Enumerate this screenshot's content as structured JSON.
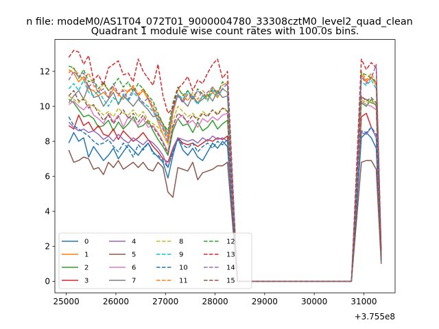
{
  "suptitle": "n file: modeM0/AS1T04_072T01_9000004780_33308cztM0_level2_quad_clean",
  "chart_data": {
    "type": "line",
    "title": "Quadrant 1 module wise count rates with 100.0s bins.",
    "xlabel": "",
    "ylabel": "",
    "offset_text": "+3.755e8",
    "xlim": [
      24770,
      31630
    ],
    "ylim": [
      -0.66,
      13.82
    ],
    "x_ticks": [
      25000,
      26000,
      27000,
      28000,
      29000,
      30000,
      31000
    ],
    "y_ticks": [
      0,
      2,
      4,
      6,
      8,
      10,
      12
    ],
    "grid": false,
    "legend": {
      "placement": "lower-left",
      "columns": 4
    },
    "x": [
      25050,
      25150,
      25250,
      25350,
      25450,
      25550,
      25650,
      25750,
      25850,
      25950,
      26050,
      26150,
      26250,
      26350,
      26450,
      26550,
      26650,
      26750,
      26850,
      26950,
      27050,
      27150,
      27250,
      27350,
      27450,
      27550,
      27650,
      27750,
      27850,
      27950,
      28050,
      28150,
      28250,
      28350,
      28450,
      28550,
      28650,
      28750,
      28850,
      28950,
      29050,
      29150,
      29250,
      29350,
      29450,
      29550,
      29650,
      29750,
      29850,
      29950,
      30050,
      30150,
      30250,
      30350,
      30450,
      30550,
      30650,
      30750,
      30850,
      30950,
      31050,
      31150,
      31250,
      31350
    ],
    "series": [
      {
        "name": "0",
        "color": "#1f77b4",
        "dash": "solid",
        "values": [
          7.9,
          8.5,
          8.0,
          8.2,
          7.1,
          7.7,
          7.3,
          6.9,
          7.2,
          7.6,
          7.0,
          7.4,
          7.8,
          7.5,
          7.2,
          7.6,
          7.9,
          7.4,
          7.1,
          6.8,
          5.9,
          7.2,
          8.2,
          7.5,
          7.2,
          7.6,
          7.1,
          6.9,
          7.4,
          7.9,
          7.6,
          8.0,
          7.7,
          4.0,
          0.0,
          0.0,
          0.0,
          0.0,
          0.0,
          0.0,
          0.0,
          0.0,
          0.0,
          0.0,
          0.0,
          0.0,
          0.0,
          0.0,
          0.0,
          0.0,
          0.0,
          0.0,
          0.0,
          0.0,
          0.0,
          0.0,
          0.0,
          0.0,
          4.0,
          8.2,
          8.5,
          8.2,
          7.6,
          1.3
        ]
      },
      {
        "name": "1",
        "color": "#ff7f0e",
        "dash": "solid",
        "values": [
          12.1,
          11.9,
          11.4,
          11.7,
          11.0,
          10.9,
          10.6,
          10.8,
          10.5,
          11.0,
          10.7,
          10.4,
          10.9,
          11.1,
          10.6,
          10.9,
          10.4,
          9.8,
          9.1,
          8.4,
          7.9,
          9.6,
          10.7,
          10.3,
          10.9,
          10.5,
          10.2,
          10.6,
          10.4,
          10.8,
          10.5,
          11.0,
          10.8,
          5.5,
          0.0,
          0.0,
          0.0,
          0.0,
          0.0,
          0.0,
          0.0,
          0.0,
          0.0,
          0.0,
          0.0,
          0.0,
          0.0,
          0.0,
          0.0,
          0.0,
          0.0,
          0.0,
          0.0,
          0.0,
          0.0,
          0.0,
          0.0,
          0.0,
          5.5,
          11.8,
          11.4,
          11.7,
          11.2,
          1.5
        ]
      },
      {
        "name": "2",
        "color": "#2ca02c",
        "dash": "solid",
        "values": [
          10.4,
          10.2,
          9.8,
          9.4,
          9.5,
          9.3,
          8.8,
          8.9,
          9.2,
          8.6,
          9.1,
          8.7,
          9.0,
          9.4,
          8.8,
          8.9,
          9.2,
          8.6,
          8.1,
          7.7,
          7.2,
          8.6,
          9.3,
          8.9,
          9.0,
          8.5,
          9.1,
          8.6,
          8.8,
          9.2,
          8.7,
          9.0,
          9.2,
          4.6,
          0.0,
          0.0,
          0.0,
          0.0,
          0.0,
          0.0,
          0.0,
          0.0,
          0.0,
          0.0,
          0.0,
          0.0,
          0.0,
          0.0,
          0.0,
          0.0,
          0.0,
          0.0,
          0.0,
          0.0,
          0.0,
          0.0,
          0.0,
          0.0,
          4.8,
          10.2,
          10.0,
          10.4,
          10.0,
          1.4
        ]
      },
      {
        "name": "3",
        "color": "#d62728",
        "dash": "solid",
        "values": [
          8.9,
          8.7,
          9.5,
          8.9,
          9.1,
          8.6,
          8.9,
          8.4,
          8.3,
          8.7,
          8.1,
          8.6,
          8.3,
          8.0,
          8.2,
          8.5,
          8.1,
          7.7,
          7.4,
          7.0,
          6.8,
          7.6,
          8.2,
          7.9,
          7.8,
          7.9,
          7.7,
          7.9,
          8.1,
          8.0,
          8.2,
          8.1,
          8.3,
          4.2,
          0.0,
          0.0,
          0.0,
          0.0,
          0.0,
          0.0,
          0.0,
          0.0,
          0.0,
          0.0,
          0.0,
          0.0,
          0.0,
          0.0,
          0.0,
          0.0,
          0.0,
          0.0,
          0.0,
          0.0,
          0.0,
          0.0,
          0.0,
          0.0,
          4.5,
          9.4,
          9.6,
          8.8,
          8.2,
          1.2
        ]
      },
      {
        "name": "4",
        "color": "#9467bd",
        "dash": "solid",
        "values": [
          9.1,
          8.8,
          8.6,
          8.7,
          8.5,
          8.6,
          8.4,
          8.1,
          8.3,
          8.0,
          8.4,
          8.1,
          7.9,
          8.2,
          8.0,
          7.8,
          8.1,
          7.9,
          7.6,
          7.2,
          6.5,
          7.5,
          8.2,
          8.1,
          8.0,
          8.1,
          7.9,
          8.2,
          8.0,
          8.3,
          8.1,
          8.2,
          8.0,
          4.1,
          0.0,
          0.0,
          0.0,
          0.0,
          0.0,
          0.0,
          0.0,
          0.0,
          0.0,
          0.0,
          0.0,
          0.0,
          0.0,
          0.0,
          0.0,
          0.0,
          0.0,
          0.0,
          0.0,
          0.0,
          0.0,
          0.0,
          0.0,
          0.0,
          4.4,
          8.5,
          8.4,
          8.8,
          8.2,
          1.2
        ]
      },
      {
        "name": "5",
        "color": "#8c564b",
        "dash": "solid",
        "values": [
          7.5,
          6.8,
          6.9,
          7.1,
          7.0,
          6.4,
          6.5,
          6.1,
          6.8,
          6.5,
          6.9,
          6.4,
          6.6,
          6.8,
          6.5,
          6.8,
          6.4,
          6.3,
          6.8,
          6.5,
          5.1,
          4.8,
          6.5,
          6.4,
          6.3,
          6.8,
          5.8,
          6.2,
          6.3,
          6.4,
          6.6,
          6.6,
          6.8,
          3.4,
          0.0,
          0.0,
          0.0,
          0.0,
          0.0,
          0.0,
          0.0,
          0.0,
          0.0,
          0.0,
          0.0,
          0.0,
          0.0,
          0.0,
          0.0,
          0.0,
          0.0,
          0.0,
          0.0,
          0.0,
          0.0,
          0.0,
          0.0,
          0.0,
          3.4,
          6.8,
          6.9,
          6.9,
          6.4,
          1.0
        ]
      },
      {
        "name": "6",
        "color": "#e377c2",
        "dash": "solid",
        "values": [
          10.1,
          10.3,
          10.0,
          9.8,
          10.1,
          9.5,
          9.3,
          9.0,
          9.6,
          9.1,
          9.5,
          8.8,
          9.4,
          9.2,
          8.9,
          9.3,
          8.8,
          8.9,
          8.5,
          8.0,
          7.4,
          8.8,
          9.3,
          9.5,
          9.0,
          9.2,
          8.8,
          9.3,
          9.1,
          9.4,
          9.2,
          9.5,
          9.6,
          4.8,
          0.0,
          0.0,
          0.0,
          0.0,
          0.0,
          0.0,
          0.0,
          0.0,
          0.0,
          0.0,
          0.0,
          0.0,
          0.0,
          0.0,
          0.0,
          0.0,
          0.0,
          0.0,
          0.0,
          0.0,
          0.0,
          0.0,
          0.0,
          0.0,
          4.8,
          10.3,
          10.1,
          10.0,
          9.8,
          1.4
        ]
      },
      {
        "name": "7",
        "color": "#7f7f7f",
        "dash": "solid",
        "values": [
          10.2,
          10.6,
          10.9,
          10.4,
          11.2,
          10.5,
          10.6,
          10.0,
          10.4,
          10.8,
          10.1,
          10.6,
          10.3,
          10.0,
          10.4,
          10.1,
          9.8,
          9.4,
          9.5,
          9.0,
          8.4,
          9.9,
          10.6,
          10.3,
          10.0,
          10.6,
          10.2,
          10.4,
          10.7,
          10.3,
          10.9,
          10.5,
          10.6,
          5.3,
          0.0,
          0.0,
          0.0,
          0.0,
          0.0,
          0.0,
          0.0,
          0.0,
          0.0,
          0.0,
          0.0,
          0.0,
          0.0,
          0.0,
          0.0,
          0.0,
          0.0,
          0.0,
          0.0,
          0.0,
          0.0,
          0.0,
          0.0,
          0.0,
          5.3,
          10.5,
          10.4,
          10.2,
          10.1,
          1.4
        ]
      },
      {
        "name": "8",
        "color": "#bcbd22",
        "dash": "dashed",
        "values": [
          10.6,
          10.4,
          10.2,
          10.5,
          10.1,
          10.0,
          9.8,
          9.5,
          9.7,
          9.4,
          9.9,
          9.6,
          9.5,
          9.8,
          9.4,
          9.7,
          9.2,
          9.0,
          8.8,
          8.4,
          7.8,
          9.2,
          10.0,
          9.7,
          9.4,
          9.6,
          9.3,
          9.7,
          9.5,
          9.8,
          9.6,
          9.9,
          9.8,
          4.9,
          0.0,
          0.0,
          0.0,
          0.0,
          0.0,
          0.0,
          0.0,
          0.0,
          0.0,
          0.0,
          0.0,
          0.0,
          0.0,
          0.0,
          0.0,
          0.0,
          0.0,
          0.0,
          0.0,
          0.0,
          0.0,
          0.0,
          0.0,
          0.0,
          4.9,
          10.4,
          10.2,
          10.3,
          10.1,
          1.4
        ]
      },
      {
        "name": "9",
        "color": "#17becf",
        "dash": "dashed",
        "values": [
          11.0,
          11.3,
          10.9,
          11.5,
          10.8,
          10.6,
          10.9,
          10.4,
          10.0,
          10.5,
          10.2,
          10.7,
          10.3,
          10.8,
          10.5,
          10.2,
          10.0,
          9.7,
          9.2,
          8.8,
          8.2,
          9.8,
          10.7,
          10.4,
          10.9,
          10.5,
          10.1,
          10.6,
          10.3,
          10.9,
          10.6,
          11.0,
          10.8,
          5.4,
          0.0,
          0.0,
          0.0,
          0.0,
          0.0,
          0.0,
          0.0,
          0.0,
          0.0,
          0.0,
          0.0,
          0.0,
          0.0,
          0.0,
          0.0,
          0.0,
          0.0,
          0.0,
          0.0,
          0.0,
          0.0,
          0.0,
          0.0,
          0.0,
          5.4,
          11.4,
          11.2,
          11.5,
          11.0,
          1.5
        ]
      },
      {
        "name": "10",
        "color": "#1f77b4",
        "dash": "dashed",
        "values": [
          9.4,
          8.9,
          8.7,
          8.5,
          8.3,
          8.0,
          7.8,
          7.9,
          8.1,
          7.7,
          7.4,
          7.9,
          7.6,
          7.1,
          7.8,
          7.5,
          7.9,
          7.3,
          7.2,
          6.9,
          6.5,
          7.4,
          8.1,
          7.8,
          7.6,
          7.9,
          7.4,
          7.7,
          7.9,
          7.6,
          8.0,
          7.8,
          8.1,
          4.0,
          0.0,
          0.0,
          0.0,
          0.0,
          0.0,
          0.0,
          0.0,
          0.0,
          0.0,
          0.0,
          0.0,
          0.0,
          0.0,
          0.0,
          0.0,
          0.0,
          0.0,
          0.0,
          0.0,
          0.0,
          0.0,
          0.0,
          0.0,
          0.0,
          4.3,
          8.6,
          8.5,
          8.8,
          8.4,
          1.2
        ]
      },
      {
        "name": "11",
        "color": "#ff7f0e",
        "dash": "dashed",
        "values": [
          11.9,
          12.2,
          11.8,
          11.5,
          11.9,
          11.2,
          10.8,
          11.3,
          10.9,
          11.1,
          10.6,
          11.0,
          10.8,
          11.2,
          10.7,
          11.0,
          10.5,
          10.1,
          9.4,
          8.9,
          8.2,
          10.1,
          11.0,
          10.7,
          10.3,
          10.8,
          10.4,
          10.9,
          10.6,
          11.1,
          10.8,
          11.2,
          11.4,
          5.6,
          0.0,
          0.0,
          0.0,
          0.0,
          0.0,
          0.0,
          0.0,
          0.0,
          0.0,
          0.0,
          0.0,
          0.0,
          0.0,
          0.0,
          0.0,
          0.0,
          0.0,
          0.0,
          0.0,
          0.0,
          0.0,
          0.0,
          0.0,
          0.0,
          5.6,
          12.0,
          11.5,
          11.9,
          11.3,
          1.6
        ]
      },
      {
        "name": "12",
        "color": "#2ca02c",
        "dash": "dashed",
        "values": [
          12.3,
          12.2,
          11.6,
          12.1,
          11.4,
          11.5,
          11.0,
          11.4,
          10.9,
          11.2,
          11.6,
          11.1,
          11.4,
          10.8,
          11.3,
          11.0,
          10.6,
          10.3,
          9.6,
          9.0,
          8.6,
          10.2,
          11.1,
          10.6,
          10.9,
          10.4,
          11.0,
          10.7,
          10.5,
          11.0,
          10.7,
          11.4,
          11.2,
          5.6,
          0.0,
          0.0,
          0.0,
          0.0,
          0.0,
          0.0,
          0.0,
          0.0,
          0.0,
          0.0,
          0.0,
          0.0,
          0.0,
          0.0,
          0.0,
          0.0,
          0.0,
          0.0,
          0.0,
          0.0,
          0.0,
          0.0,
          0.0,
          0.0,
          5.7,
          11.9,
          11.8,
          11.6,
          11.4,
          1.6
        ]
      },
      {
        "name": "13",
        "color": "#d62728",
        "dash": "dashed",
        "values": [
          12.8,
          13.2,
          13.1,
          12.4,
          12.9,
          11.5,
          11.8,
          11.2,
          12.2,
          12.4,
          12.6,
          11.8,
          11.9,
          11.4,
          12.7,
          12.0,
          11.6,
          11.2,
          12.4,
          10.6,
          9.6,
          9.9,
          11.0,
          11.3,
          11.7,
          10.9,
          11.5,
          11.3,
          11.9,
          12.4,
          12.7,
          11.6,
          12.0,
          6.0,
          0.0,
          0.0,
          0.0,
          0.0,
          0.0,
          0.0,
          0.0,
          0.0,
          0.0,
          0.0,
          0.0,
          0.0,
          0.0,
          0.0,
          0.0,
          0.0,
          0.0,
          0.0,
          0.0,
          0.0,
          0.0,
          0.0,
          0.0,
          0.0,
          6.3,
          12.7,
          12.1,
          12.5,
          12.2,
          1.7
        ]
      },
      {
        "name": "14",
        "color": "#9467bd",
        "dash": "dashed",
        "values": [
          11.5,
          12.0,
          11.7,
          11.9,
          11.1,
          11.4,
          10.8,
          11.0,
          10.5,
          11.3,
          10.7,
          10.9,
          10.4,
          11.0,
          10.6,
          10.2,
          10.5,
          9.9,
          9.3,
          8.7,
          8.0,
          9.8,
          10.6,
          10.2,
          10.7,
          10.4,
          10.9,
          10.6,
          10.8,
          11.1,
          10.7,
          11.0,
          11.3,
          5.6,
          0.0,
          0.0,
          0.0,
          0.0,
          0.0,
          0.0,
          0.0,
          0.0,
          0.0,
          0.0,
          0.0,
          0.0,
          0.0,
          0.0,
          0.0,
          0.0,
          0.0,
          0.0,
          0.0,
          0.0,
          0.0,
          0.0,
          0.0,
          0.0,
          5.6,
          11.7,
          11.3,
          11.6,
          12.4,
          1.6
        ]
      },
      {
        "name": "15",
        "color": "#8c564b",
        "dash": "dashed",
        "values": [
          10.6,
          10.9,
          10.3,
          10.4,
          9.9,
          10.1,
          9.6,
          9.2,
          9.5,
          9.0,
          9.4,
          9.8,
          9.3,
          9.6,
          9.1,
          9.5,
          9.0,
          8.8,
          8.4,
          7.9,
          7.3,
          8.9,
          9.6,
          9.4,
          9.1,
          9.5,
          9.2,
          9.6,
          9.4,
          9.8,
          9.5,
          9.9,
          9.7,
          4.8,
          0.0,
          0.0,
          0.0,
          0.0,
          0.0,
          0.0,
          0.0,
          0.0,
          0.0,
          0.0,
          0.0,
          0.0,
          0.0,
          0.0,
          0.0,
          0.0,
          0.0,
          0.0,
          0.0,
          0.0,
          0.0,
          0.0,
          0.0,
          0.0,
          5.0,
          10.6,
          10.3,
          10.5,
          10.2,
          1.4
        ]
      }
    ]
  }
}
